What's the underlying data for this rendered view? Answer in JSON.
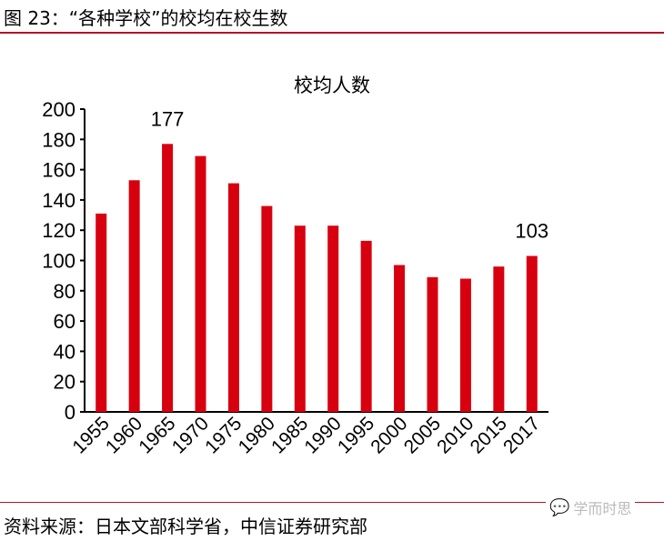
{
  "figure_title": "图 23：“各种学校”的校均在校生数",
  "source": "资料来源：日本文部科学省，中信证券研究部",
  "watermark": "学而时思",
  "colors": {
    "bar": "#d7000f",
    "rule": "#b0142a"
  },
  "chart_data": {
    "type": "bar",
    "title": "校均人数",
    "categories": [
      "1955",
      "1960",
      "1965",
      "1970",
      "1975",
      "1980",
      "1985",
      "1990",
      "1995",
      "2000",
      "2005",
      "2010",
      "2015",
      "2017"
    ],
    "values": [
      131,
      153,
      177,
      169,
      151,
      136,
      123,
      123,
      113,
      97,
      89,
      88,
      96,
      103
    ],
    "data_labels": [
      {
        "category": "1965",
        "text": "177"
      },
      {
        "category": "2017",
        "text": "103"
      }
    ],
    "ylim": [
      0,
      200
    ],
    "yticks": [
      "0",
      "20",
      "40",
      "60",
      "80",
      "100",
      "120",
      "140",
      "160",
      "180",
      "200"
    ],
    "grid": false,
    "legend": "none"
  }
}
